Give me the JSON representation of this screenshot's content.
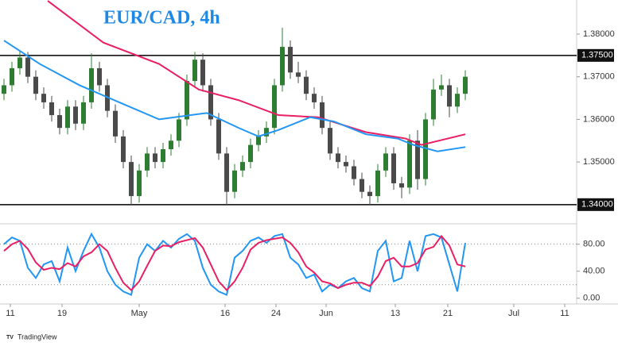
{
  "chart_data": {
    "type": "candlestick",
    "title": "EUR/CAD, 4h",
    "brand": "TradingView",
    "up_color": "#2e7d32",
    "down_color": "#4a4a4a",
    "xlim": [
      0,
      145
    ],
    "xticks": [
      {
        "value": 2.6,
        "label": "11"
      },
      {
        "value": 15.6,
        "label": "19"
      },
      {
        "value": 35,
        "label": "May"
      },
      {
        "value": 56.6,
        "label": "16"
      },
      {
        "value": 69.4,
        "label": "24"
      },
      {
        "value": 82,
        "label": "Jun"
      },
      {
        "value": 99.4,
        "label": "13"
      },
      {
        "value": 112.6,
        "label": "21"
      },
      {
        "value": 129.2,
        "label": "Jul"
      },
      {
        "value": 142,
        "label": "11"
      }
    ],
    "ylim": [
      1.3355,
      1.388
    ],
    "yticks": [
      {
        "value": 1.38,
        "label": "1.38000"
      },
      {
        "value": 1.37,
        "label": "1.37000"
      },
      {
        "value": 1.36,
        "label": "1.36000"
      },
      {
        "value": 1.35,
        "label": "1.35000"
      }
    ],
    "levels": [
      {
        "value": 1.375,
        "label": "1.37500"
      },
      {
        "value": 1.34,
        "label": "1.34000"
      }
    ],
    "candles": [
      {
        "x": 1,
        "o": 1.366,
        "h": 1.3695,
        "l": 1.3645,
        "c": 1.368
      },
      {
        "x": 3,
        "o": 1.368,
        "h": 1.3735,
        "l": 1.3665,
        "c": 1.372
      },
      {
        "x": 5,
        "o": 1.372,
        "h": 1.3762,
        "l": 1.3705,
        "c": 1.3745
      },
      {
        "x": 7,
        "o": 1.3745,
        "h": 1.3758,
        "l": 1.3685,
        "c": 1.37
      },
      {
        "x": 9,
        "o": 1.37,
        "h": 1.3715,
        "l": 1.3645,
        "c": 1.366
      },
      {
        "x": 11,
        "o": 1.366,
        "h": 1.3675,
        "l": 1.3625,
        "c": 1.364
      },
      {
        "x": 13,
        "o": 1.364,
        "h": 1.3655,
        "l": 1.3595,
        "c": 1.361
      },
      {
        "x": 15,
        "o": 1.361,
        "h": 1.3625,
        "l": 1.3565,
        "c": 1.358
      },
      {
        "x": 17,
        "o": 1.358,
        "h": 1.3645,
        "l": 1.3565,
        "c": 1.363
      },
      {
        "x": 19,
        "o": 1.363,
        "h": 1.3645,
        "l": 1.3575,
        "c": 1.359
      },
      {
        "x": 21,
        "o": 1.359,
        "h": 1.3655,
        "l": 1.3575,
        "c": 1.364
      },
      {
        "x": 23,
        "o": 1.364,
        "h": 1.3755,
        "l": 1.3625,
        "c": 1.372
      },
      {
        "x": 25,
        "o": 1.372,
        "h": 1.3735,
        "l": 1.3665,
        "c": 1.368
      },
      {
        "x": 27,
        "o": 1.368,
        "h": 1.3695,
        "l": 1.3605,
        "c": 1.362
      },
      {
        "x": 29,
        "o": 1.362,
        "h": 1.3635,
        "l": 1.3545,
        "c": 1.356
      },
      {
        "x": 31,
        "o": 1.356,
        "h": 1.3575,
        "l": 1.3485,
        "c": 1.35
      },
      {
        "x": 33,
        "o": 1.35,
        "h": 1.3515,
        "l": 1.3398,
        "c": 1.342
      },
      {
        "x": 35,
        "o": 1.342,
        "h": 1.3495,
        "l": 1.3405,
        "c": 1.348
      },
      {
        "x": 37,
        "o": 1.348,
        "h": 1.3535,
        "l": 1.3465,
        "c": 1.352
      },
      {
        "x": 39,
        "o": 1.352,
        "h": 1.3535,
        "l": 1.3485,
        "c": 1.35
      },
      {
        "x": 41,
        "o": 1.35,
        "h": 1.3545,
        "l": 1.3485,
        "c": 1.353
      },
      {
        "x": 43,
        "o": 1.353,
        "h": 1.3565,
        "l": 1.3515,
        "c": 1.355
      },
      {
        "x": 45,
        "o": 1.355,
        "h": 1.3615,
        "l": 1.3535,
        "c": 1.36
      },
      {
        "x": 47,
        "o": 1.36,
        "h": 1.3705,
        "l": 1.3585,
        "c": 1.369
      },
      {
        "x": 49,
        "o": 1.369,
        "h": 1.3758,
        "l": 1.3675,
        "c": 1.374
      },
      {
        "x": 51,
        "o": 1.374,
        "h": 1.3755,
        "l": 1.3665,
        "c": 1.368
      },
      {
        "x": 53,
        "o": 1.368,
        "h": 1.3695,
        "l": 1.3585,
        "c": 1.36
      },
      {
        "x": 55,
        "o": 1.36,
        "h": 1.3615,
        "l": 1.3505,
        "c": 1.352
      },
      {
        "x": 57,
        "o": 1.352,
        "h": 1.3535,
        "l": 1.3398,
        "c": 1.343
      },
      {
        "x": 59,
        "o": 1.343,
        "h": 1.3495,
        "l": 1.3415,
        "c": 1.348
      },
      {
        "x": 61,
        "o": 1.348,
        "h": 1.3515,
        "l": 1.3465,
        "c": 1.35
      },
      {
        "x": 63,
        "o": 1.35,
        "h": 1.3555,
        "l": 1.3485,
        "c": 1.354
      },
      {
        "x": 65,
        "o": 1.354,
        "h": 1.3575,
        "l": 1.3525,
        "c": 1.356
      },
      {
        "x": 67,
        "o": 1.356,
        "h": 1.3595,
        "l": 1.3545,
        "c": 1.358
      },
      {
        "x": 69,
        "o": 1.358,
        "h": 1.3695,
        "l": 1.3565,
        "c": 1.368
      },
      {
        "x": 71,
        "o": 1.368,
        "h": 1.3815,
        "l": 1.3665,
        "c": 1.377
      },
      {
        "x": 73,
        "o": 1.377,
        "h": 1.3785,
        "l": 1.3695,
        "c": 1.371
      },
      {
        "x": 75,
        "o": 1.371,
        "h": 1.3735,
        "l": 1.3685,
        "c": 1.37
      },
      {
        "x": 77,
        "o": 1.37,
        "h": 1.3715,
        "l": 1.3645,
        "c": 1.366
      },
      {
        "x": 79,
        "o": 1.366,
        "h": 1.3675,
        "l": 1.3625,
        "c": 1.364
      },
      {
        "x": 81,
        "o": 1.364,
        "h": 1.3655,
        "l": 1.3565,
        "c": 1.358
      },
      {
        "x": 83,
        "o": 1.358,
        "h": 1.3595,
        "l": 1.3505,
        "c": 1.352
      },
      {
        "x": 85,
        "o": 1.352,
        "h": 1.3535,
        "l": 1.3485,
        "c": 1.35
      },
      {
        "x": 87,
        "o": 1.35,
        "h": 1.3515,
        "l": 1.3475,
        "c": 1.349
      },
      {
        "x": 89,
        "o": 1.349,
        "h": 1.3505,
        "l": 1.3445,
        "c": 1.346
      },
      {
        "x": 91,
        "o": 1.346,
        "h": 1.3475,
        "l": 1.3415,
        "c": 1.343
      },
      {
        "x": 93,
        "o": 1.343,
        "h": 1.3445,
        "l": 1.3398,
        "c": 1.342
      },
      {
        "x": 95,
        "o": 1.342,
        "h": 1.3495,
        "l": 1.3405,
        "c": 1.348
      },
      {
        "x": 97,
        "o": 1.348,
        "h": 1.3535,
        "l": 1.3465,
        "c": 1.352
      },
      {
        "x": 99,
        "o": 1.352,
        "h": 1.3535,
        "l": 1.3435,
        "c": 1.345
      },
      {
        "x": 101,
        "o": 1.345,
        "h": 1.3465,
        "l": 1.3415,
        "c": 1.344
      },
      {
        "x": 103,
        "o": 1.344,
        "h": 1.3565,
        "l": 1.3425,
        "c": 1.355
      },
      {
        "x": 105,
        "o": 1.355,
        "h": 1.3575,
        "l": 1.3435,
        "c": 1.346
      },
      {
        "x": 107,
        "o": 1.346,
        "h": 1.3615,
        "l": 1.3445,
        "c": 1.36
      },
      {
        "x": 109,
        "o": 1.36,
        "h": 1.3695,
        "l": 1.3585,
        "c": 1.367
      },
      {
        "x": 111,
        "o": 1.367,
        "h": 1.3705,
        "l": 1.3655,
        "c": 1.368
      },
      {
        "x": 113,
        "o": 1.368,
        "h": 1.3695,
        "l": 1.3605,
        "c": 1.363
      },
      {
        "x": 115,
        "o": 1.363,
        "h": 1.3675,
        "l": 1.3615,
        "c": 1.366
      },
      {
        "x": 117,
        "o": 1.366,
        "h": 1.3715,
        "l": 1.3645,
        "c": 1.37
      }
    ],
    "lines": [
      {
        "color": "#e91e63",
        "x": [
          12,
          26,
          40,
          50,
          60,
          70,
          80,
          92,
          102,
          106,
          117
        ],
        "values": [
          1.3878,
          1.378,
          1.373,
          1.367,
          1.3645,
          1.361,
          1.3605,
          1.357,
          1.3555,
          1.354,
          1.3565
        ]
      },
      {
        "color": "#2196f3",
        "x": [
          1,
          10,
          20,
          30,
          40,
          52,
          60,
          65,
          70,
          78,
          84,
          92,
          100,
          104,
          110,
          117
        ],
        "values": [
          1.3785,
          1.373,
          1.368,
          1.364,
          1.36,
          1.3615,
          1.358,
          1.356,
          1.3575,
          1.3605,
          1.3595,
          1.3565,
          1.3555,
          1.354,
          1.3525,
          1.3535
        ]
      }
    ],
    "oscillator": {
      "type": "line",
      "ylim": [
        -8.5,
        109
      ],
      "yticks": [
        {
          "value": 80,
          "label": "80.00"
        },
        {
          "value": 40,
          "label": "40.00"
        },
        {
          "value": 0,
          "label": "0.00"
        }
      ],
      "bands": [
        80,
        20
      ],
      "x": [
        1,
        3,
        5,
        7,
        9,
        11,
        13,
        15,
        17,
        19,
        21,
        23,
        25,
        27,
        29,
        31,
        33,
        35,
        37,
        39,
        41,
        43,
        45,
        47,
        49,
        51,
        53,
        55,
        57,
        59,
        61,
        63,
        65,
        67,
        69,
        71,
        73,
        75,
        77,
        79,
        81,
        83,
        85,
        87,
        89,
        91,
        93,
        95,
        97,
        99,
        101,
        103,
        105,
        107,
        109,
        111,
        113,
        115,
        117
      ],
      "series": [
        {
          "color": "#2196f3",
          "values": [
            80,
            90,
            85,
            45,
            30,
            50,
            55,
            25,
            75,
            40,
            70,
            95,
            75,
            40,
            20,
            10,
            5,
            60,
            80,
            70,
            85,
            75,
            88,
            95,
            85,
            45,
            20,
            10,
            5,
            60,
            70,
            85,
            90,
            82,
            92,
            95,
            60,
            50,
            30,
            35,
            10,
            20,
            15,
            25,
            30,
            15,
            10,
            70,
            85,
            25,
            30,
            85,
            40,
            92,
            95,
            90,
            50,
            10,
            82
          ]
        },
        {
          "color": "#e91e63",
          "values": [
            70,
            80,
            85,
            73,
            53,
            42,
            45,
            43,
            52,
            47,
            62,
            68,
            80,
            70,
            45,
            23,
            12,
            25,
            48,
            70,
            78,
            77,
            83,
            86,
            89,
            75,
            50,
            25,
            12,
            25,
            45,
            72,
            82,
            86,
            88,
            90,
            82,
            68,
            47,
            38,
            25,
            22,
            15,
            20,
            23,
            23,
            18,
            32,
            55,
            60,
            47,
            47,
            52,
            72,
            76,
            92,
            78,
            50,
            47
          ]
        }
      ]
    }
  }
}
